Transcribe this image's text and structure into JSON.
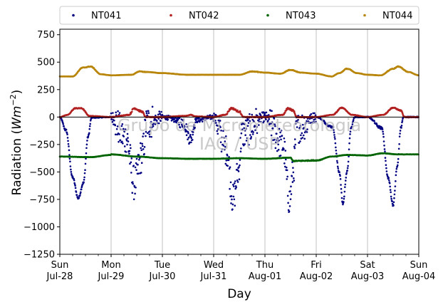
{
  "chart_data": {
    "type": "scatter",
    "xlabel": "Day",
    "ylabel_main": "Radiation (",
    "ylabel_unit_italic": "Wm",
    "ylabel_exp": "−2",
    "ylabel_close": ")",
    "ylim": [
      -1250,
      800
    ],
    "xlim_days": [
      0,
      7
    ],
    "y_ticks": [
      -1250,
      -1000,
      -750,
      -500,
      -250,
      0,
      250,
      500,
      750
    ],
    "y_tick_labels": [
      "−1250",
      "−1000",
      "−750",
      "−500",
      "−250",
      "0",
      "250",
      "500",
      "750"
    ],
    "x_ticks": [
      {
        "day": 0,
        "weekday": "Sun",
        "date": "Jul-28"
      },
      {
        "day": 1,
        "weekday": "Mon",
        "date": "Jul-29"
      },
      {
        "day": 2,
        "weekday": "Tue",
        "date": "Jul-30"
      },
      {
        "day": 3,
        "weekday": "Wed",
        "date": "Jul-31"
      },
      {
        "day": 4,
        "weekday": "Thu",
        "date": "Aug-01"
      },
      {
        "day": 5,
        "weekday": "Fri",
        "date": "Aug-02"
      },
      {
        "day": 6,
        "weekday": "Sat",
        "date": "Aug-03"
      },
      {
        "day": 7,
        "weekday": "Sun",
        "date": "Aug-04"
      }
    ],
    "grid_x": true,
    "zero_line": true,
    "legend_position": "top",
    "watermark_line1": "Grupo de Micrometeorologia",
    "watermark_line2": "IAG / USP",
    "series": [
      {
        "name": "NT041",
        "color": "#000080",
        "base": -5,
        "days": [
          {
            "noise": 10,
            "pts": [
              [
                0,
                0
              ],
              [
                0.12,
                -120
              ],
              [
                0.25,
                -550
              ],
              [
                0.36,
                -740
              ],
              [
                0.46,
                -600
              ],
              [
                0.55,
                -180
              ],
              [
                0.62,
                -5
              ],
              [
                1,
                0
              ]
            ]
          },
          {
            "noise": 160,
            "pts": [
              [
                0,
                0
              ],
              [
                0.3,
                -200
              ],
              [
                0.45,
                -600
              ],
              [
                0.6,
                -350
              ],
              [
                0.7,
                -50
              ],
              [
                1,
                0
              ]
            ]
          },
          {
            "noise": 60,
            "pts": [
              [
                0,
                0
              ],
              [
                0.4,
                -40
              ],
              [
                0.55,
                -200
              ],
              [
                0.65,
                -30
              ],
              [
                1,
                0
              ]
            ]
          },
          {
            "noise": 140,
            "pts": [
              [
                0,
                0
              ],
              [
                0.25,
                -300
              ],
              [
                0.38,
                -750
              ],
              [
                0.48,
                -500
              ],
              [
                0.55,
                -150
              ],
              [
                1,
                0
              ]
            ]
          },
          {
            "noise": 140,
            "pts": [
              [
                0,
                0
              ],
              [
                0.35,
                -250
              ],
              [
                0.48,
                -760
              ],
              [
                0.55,
                -500
              ],
              [
                0.62,
                -100
              ],
              [
                1,
                0
              ]
            ]
          },
          {
            "noise": 10,
            "pts": [
              [
                0,
                0
              ],
              [
                0.32,
                -90
              ],
              [
                0.45,
                -500
              ],
              [
                0.52,
                -790
              ],
              [
                0.6,
                -500
              ],
              [
                0.68,
                -100
              ],
              [
                0.75,
                0
              ],
              [
                1,
                0
              ]
            ]
          },
          {
            "noise": 12,
            "pts": [
              [
                0,
                0
              ],
              [
                0.28,
                -100
              ],
              [
                0.4,
                -550
              ],
              [
                0.5,
                -800
              ],
              [
                0.58,
                -450
              ],
              [
                0.65,
                -100
              ],
              [
                0.7,
                0
              ],
              [
                1,
                0
              ]
            ]
          }
        ]
      },
      {
        "name": "NT042",
        "color": "#b22222",
        "base": 0,
        "days": [
          {
            "noise": 4,
            "pts": [
              [
                0,
                0
              ],
              [
                0.15,
                20
              ],
              [
                0.3,
                80
              ],
              [
                0.42,
                80
              ],
              [
                0.58,
                10
              ],
              [
                1,
                0
              ]
            ]
          },
          {
            "noise": 8,
            "pts": [
              [
                0,
                0
              ],
              [
                0.35,
                20
              ],
              [
                0.45,
                80
              ],
              [
                0.6,
                50
              ],
              [
                0.68,
                0
              ],
              [
                1,
                0
              ]
            ]
          },
          {
            "noise": 6,
            "pts": [
              [
                0,
                0
              ],
              [
                0.45,
                10
              ],
              [
                0.55,
                20
              ],
              [
                0.65,
                5
              ],
              [
                1,
                0
              ]
            ]
          },
          {
            "noise": 8,
            "pts": [
              [
                0,
                0
              ],
              [
                0.22,
                20
              ],
              [
                0.35,
                80
              ],
              [
                0.5,
                50
              ],
              [
                0.58,
                0
              ],
              [
                1,
                0
              ]
            ]
          },
          {
            "noise": 8,
            "pts": [
              [
                0,
                0
              ],
              [
                0.35,
                20
              ],
              [
                0.45,
                80
              ],
              [
                0.55,
                60
              ],
              [
                0.62,
                0
              ],
              [
                1,
                0
              ]
            ]
          },
          {
            "noise": 4,
            "pts": [
              [
                0,
                0
              ],
              [
                0.32,
                20
              ],
              [
                0.5,
                85
              ],
              [
                0.7,
                20
              ],
              [
                1,
                0
              ]
            ]
          },
          {
            "noise": 4,
            "pts": [
              [
                0,
                0
              ],
              [
                0.3,
                20
              ],
              [
                0.5,
                85
              ],
              [
                0.65,
                60
              ],
              [
                0.72,
                0
              ],
              [
                1,
                0
              ]
            ]
          }
        ]
      },
      {
        "name": "NT043",
        "color": "#006400",
        "base": -350,
        "days": [
          {
            "noise": 4,
            "pts": [
              [
                0,
                -360
              ],
              [
                0.6,
                -365
              ],
              [
                1,
                -345
              ]
            ]
          },
          {
            "noise": 4,
            "pts": [
              [
                0,
                -340
              ],
              [
                0.5,
                -360
              ],
              [
                1,
                -375
              ]
            ]
          },
          {
            "noise": 4,
            "pts": [
              [
                0,
                -375
              ],
              [
                0.5,
                -380
              ],
              [
                1,
                -380
              ]
            ]
          },
          {
            "noise": 4,
            "pts": [
              [
                0,
                -380
              ],
              [
                0.5,
                -375
              ],
              [
                1,
                -380
              ]
            ]
          },
          {
            "noise": 4,
            "pts": [
              [
                0,
                -380
              ],
              [
                0.5,
                -370
              ],
              [
                0.55,
                -400
              ],
              [
                1,
                -395
              ]
            ]
          },
          {
            "noise": 4,
            "pts": [
              [
                0,
                -395
              ],
              [
                0.3,
                -360
              ],
              [
                0.6,
                -345
              ],
              [
                1,
                -350
              ]
            ]
          },
          {
            "noise": 4,
            "pts": [
              [
                0,
                -350
              ],
              [
                0.3,
                -330
              ],
              [
                0.6,
                -340
              ],
              [
                1,
                -340
              ]
            ]
          }
        ]
      },
      {
        "name": "NT044",
        "color": "#b8860b",
        "base": 380,
        "days": [
          {
            "noise": 3,
            "pts": [
              [
                0,
                370
              ],
              [
                0.25,
                370
              ],
              [
                0.45,
                450
              ],
              [
                0.6,
                460
              ],
              [
                0.8,
                390
              ],
              [
                1,
                380
              ]
            ]
          },
          {
            "noise": 3,
            "pts": [
              [
                0,
                380
              ],
              [
                0.4,
                385
              ],
              [
                0.55,
                415
              ],
              [
                0.7,
                410
              ],
              [
                1,
                400
              ]
            ]
          },
          {
            "noise": 3,
            "pts": [
              [
                0,
                400
              ],
              [
                0.5,
                385
              ],
              [
                1,
                385
              ]
            ]
          },
          {
            "noise": 3,
            "pts": [
              [
                0,
                385
              ],
              [
                0.5,
                385
              ],
              [
                0.75,
                415
              ],
              [
                1,
                405
              ]
            ]
          },
          {
            "noise": 3,
            "pts": [
              [
                0,
                405
              ],
              [
                0.3,
                395
              ],
              [
                0.5,
                430
              ],
              [
                0.7,
                405
              ],
              [
                1,
                395
              ]
            ]
          },
          {
            "noise": 3,
            "pts": [
              [
                0,
                395
              ],
              [
                0.3,
                370
              ],
              [
                0.45,
                400
              ],
              [
                0.6,
                440
              ],
              [
                0.8,
                400
              ],
              [
                1,
                385
              ]
            ]
          },
          {
            "noise": 3,
            "pts": [
              [
                0,
                385
              ],
              [
                0.25,
                380
              ],
              [
                0.5,
                440
              ],
              [
                0.6,
                460
              ],
              [
                0.8,
                410
              ],
              [
                1,
                380
              ]
            ]
          }
        ]
      }
    ]
  }
}
